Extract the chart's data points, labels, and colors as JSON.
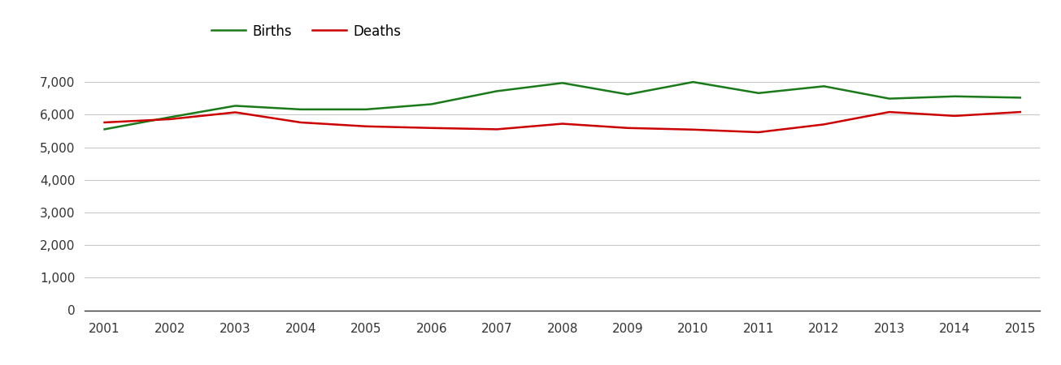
{
  "years": [
    2001,
    2002,
    2003,
    2004,
    2005,
    2006,
    2007,
    2008,
    2009,
    2010,
    2011,
    2012,
    2013,
    2014,
    2015
  ],
  "births": [
    5550,
    5920,
    6270,
    6160,
    6160,
    6320,
    6720,
    6970,
    6620,
    7000,
    6660,
    6870,
    6490,
    6560,
    6520
  ],
  "deaths": [
    5760,
    5860,
    6070,
    5760,
    5640,
    5590,
    5550,
    5720,
    5590,
    5540,
    5460,
    5700,
    6080,
    5960,
    6080
  ],
  "births_color": "#1a7a1a",
  "deaths_color": "#cc0000",
  "background_color": "#ffffff",
  "grid_color": "#c8c8c8",
  "ylim": [
    0,
    7500
  ],
  "yticks": [
    0,
    1000,
    2000,
    3000,
    4000,
    5000,
    6000,
    7000
  ],
  "legend_labels": [
    "Births",
    "Deaths"
  ],
  "line_width": 1.8,
  "tick_fontsize": 11,
  "legend_fontsize": 12
}
